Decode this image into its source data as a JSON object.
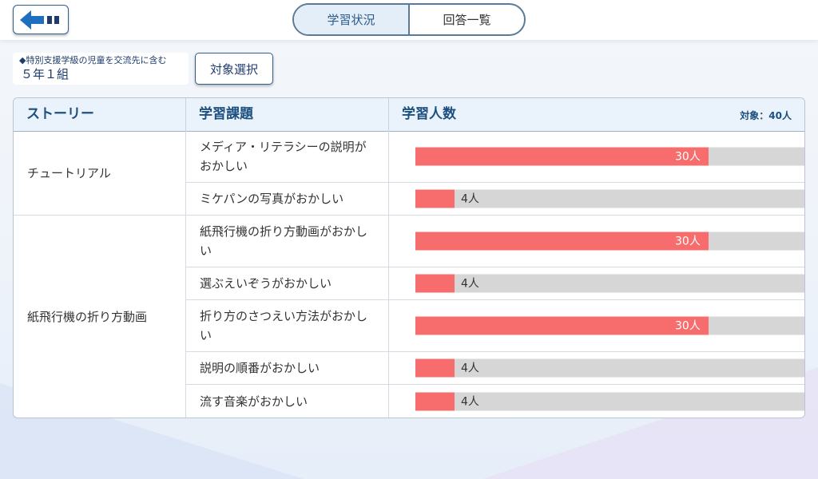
{
  "colors": {
    "accent": "#2f5f8f",
    "bar_fill": "#f76d6d",
    "bar_track": "#d6d6d6",
    "header_bg": "#eaf3fc"
  },
  "header": {
    "back_icon": "back-arrow-icon",
    "tabs": [
      {
        "label": "学習状況",
        "active": true
      },
      {
        "label": "回答一覧",
        "active": false
      }
    ]
  },
  "filter": {
    "note": "◆特別支援学級の児童を交流先に含む",
    "class_name": "５年１組",
    "select_label": "対象選択"
  },
  "table": {
    "columns": {
      "story": "ストーリー",
      "task": "学習課題",
      "count": "学習人数",
      "target": "対象：40人"
    },
    "total": 40,
    "stories": [
      {
        "name": "チュートリアル",
        "rows": [
          {
            "task": "メディア・リテラシーの説明がおかしい",
            "count": 30,
            "label": "30人"
          },
          {
            "task": "ミケパンの写真がおかしい",
            "count": 4,
            "label": "4人"
          }
        ]
      },
      {
        "name": "紙飛行機の折り方動画",
        "rows": [
          {
            "task": "紙飛行機の折り方動画がおかしい",
            "count": 30,
            "label": "30人"
          },
          {
            "task": "選ぶえいぞうがおかしい",
            "count": 4,
            "label": "4人"
          },
          {
            "task": "折り方のさつえい方法がおかしい",
            "count": 30,
            "label": "30人"
          },
          {
            "task": "説明の順番がおかしい",
            "count": 4,
            "label": "4人"
          },
          {
            "task": "流す音楽がおかしい",
            "count": 4,
            "label": "4人"
          }
        ]
      }
    ]
  }
}
